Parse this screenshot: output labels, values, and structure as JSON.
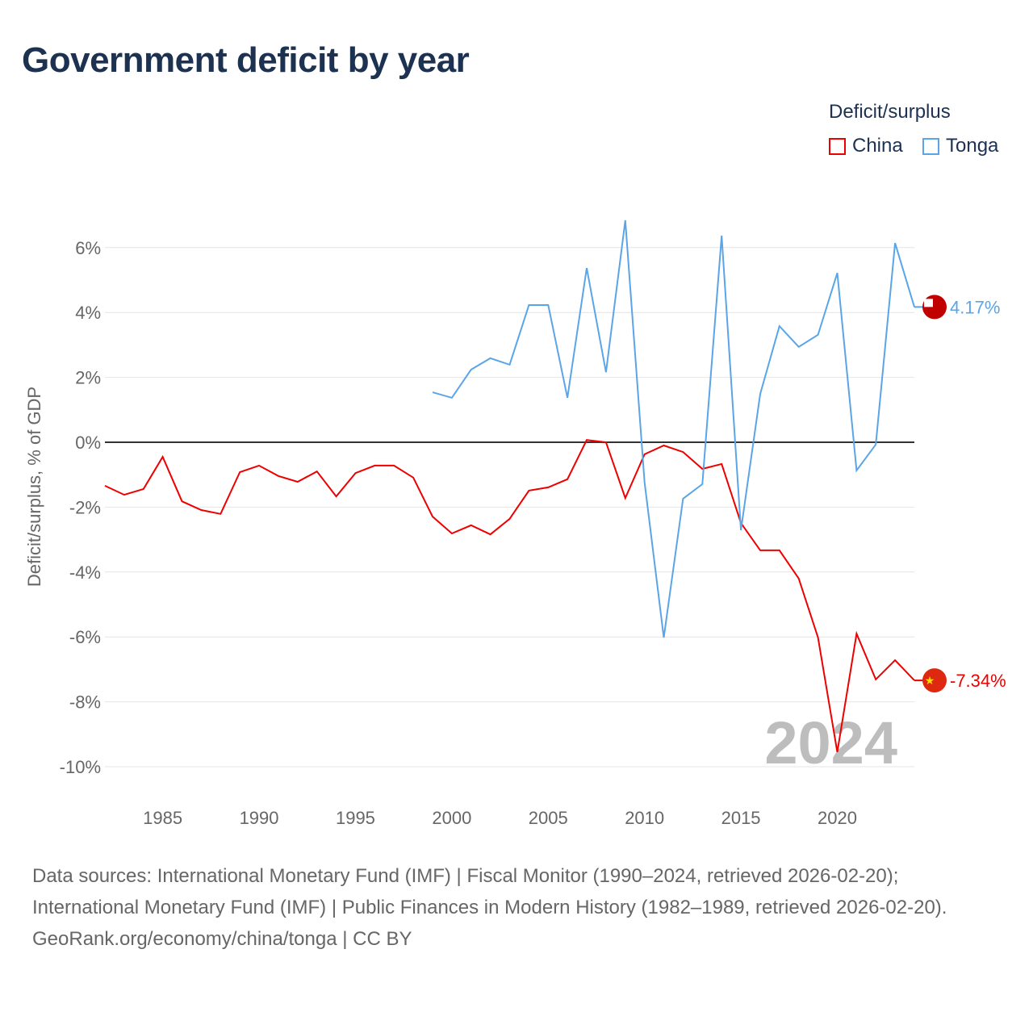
{
  "title": "Government deficit by year",
  "legend": {
    "title": "Deficit/surplus",
    "items": [
      "China",
      "Tonga"
    ]
  },
  "footer": {
    "sources": "Data sources: International Monetary Fund (IMF) | Fiscal Monitor (1990–2024, retrieved 2026-02-20); International Monetary Fund (IMF) | Public Finances in Modern History (1982–1989, retrieved 2026-02-20).",
    "credit": "GeoRank.org/economy/china/tonga | CC BY"
  },
  "chart_data": {
    "type": "line",
    "title": "Government deficit by year",
    "ylabel": "Deficit/surplus, % of GDP",
    "xlim": [
      1982,
      2024
    ],
    "ylim": [
      -10,
      7
    ],
    "yticks": [
      6,
      4,
      2,
      0,
      -2,
      -4,
      -6,
      -8,
      -10
    ],
    "ytick_labels": [
      "6%",
      "4%",
      "2%",
      "0%",
      "-2%",
      "-4%",
      "-6%",
      "-8%",
      "-10%"
    ],
    "xticks": [
      1985,
      1990,
      1995,
      2000,
      2005,
      2010,
      2015,
      2020
    ],
    "year_label": "2024",
    "series": [
      {
        "name": "China",
        "color": "#ee0000",
        "end_label": "-7.34%",
        "start": 1982,
        "values": [
          -1.34,
          -1.62,
          -1.44,
          -0.45,
          -1.82,
          -2.09,
          -2.21,
          -0.92,
          -0.72,
          -1.04,
          -1.22,
          -0.9,
          -1.67,
          -0.95,
          -0.72,
          -0.72,
          -1.09,
          -2.29,
          -2.81,
          -2.56,
          -2.84,
          -2.36,
          -1.49,
          -1.39,
          -1.14,
          0.07,
          0.0,
          -1.72,
          -0.37,
          -0.1,
          -0.3,
          -0.82,
          -0.67,
          -2.49,
          -3.33,
          -3.33,
          -4.2,
          -6.02,
          -9.55,
          -5.9,
          -7.31,
          -6.72,
          -7.34
        ]
      },
      {
        "name": "Tonga",
        "color": "#5aa5e8",
        "end_label": "4.17%",
        "start": 1999,
        "values": [
          1.54,
          1.37,
          2.24,
          2.59,
          2.39,
          4.23,
          4.23,
          1.37,
          5.37,
          2.16,
          6.84,
          -1.24,
          -6.02,
          -1.74,
          -1.29,
          6.37,
          -2.71,
          1.49,
          3.58,
          2.94,
          3.31,
          5.22,
          -0.87,
          -0.07,
          6.14,
          4.17
        ]
      }
    ]
  }
}
